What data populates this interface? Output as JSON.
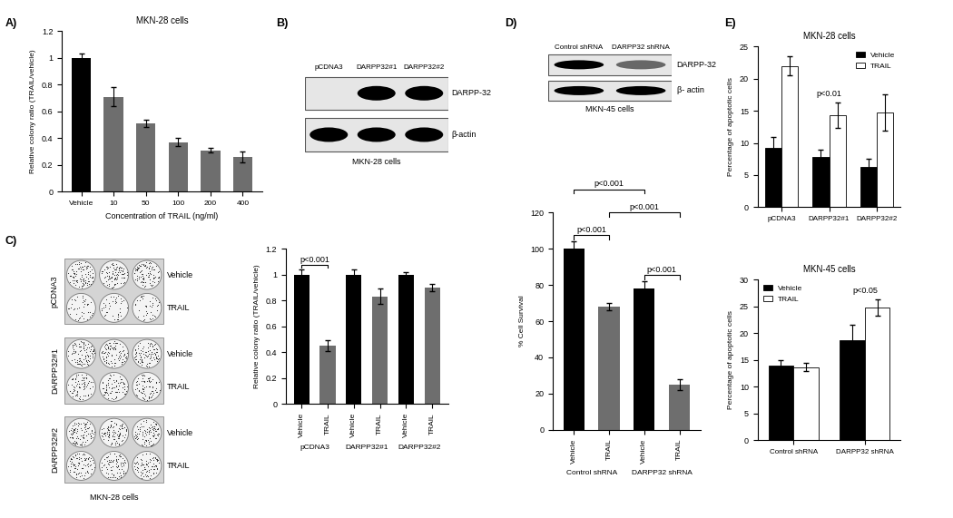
{
  "panel_labels": [
    "A)",
    "B)",
    "C)",
    "D)",
    "E)"
  ],
  "chart_data": [
    {
      "type": "bar",
      "title": "MKN-28 cells",
      "categories": [
        "Vehicle",
        "10",
        "50",
        "100",
        "200",
        "400"
      ],
      "values": [
        1.0,
        0.71,
        0.51,
        0.37,
        0.31,
        0.26
      ],
      "error": [
        0.03,
        0.07,
        0.03,
        0.03,
        0.02,
        0.04
      ],
      "colors": [
        "#000000",
        "#6e6e6e",
        "#6e6e6e",
        "#6e6e6e",
        "#6e6e6e",
        "#6e6e6e"
      ],
      "xlabel": "Concentration of TRAIL (ng/ml)",
      "ylabel": "Relative colony ratio (TRAIL/vehicle)",
      "ylim": [
        0,
        1.2
      ],
      "yticks": [
        0,
        0.2,
        0.4,
        0.6,
        0.8,
        1,
        1.2
      ]
    },
    {
      "type": "bar",
      "categories": [
        "Vehicle",
        "TRAIL",
        "Vehicle",
        "TRAIL",
        "Vehicle",
        "TRAIL"
      ],
      "groups": [
        "pCDNA3",
        "DARPP32#1",
        "DARPP32#2"
      ],
      "values": [
        1.0,
        0.45,
        1.0,
        0.83,
        1.0,
        0.9
      ],
      "error": [
        0.04,
        0.04,
        0.04,
        0.06,
        0.02,
        0.03
      ],
      "colors": [
        "#000000",
        "#6e6e6e",
        "#000000",
        "#6e6e6e",
        "#000000",
        "#6e6e6e"
      ],
      "ylabel": "Relative colony ratio (TRAIL/vehicle)",
      "ylim": [
        0,
        1.2
      ],
      "yticks": [
        0,
        0.2,
        0.4,
        0.6,
        0.8,
        1,
        1.2
      ],
      "annotations": [
        {
          "text": "p<0.001",
          "from": 0,
          "to": 1
        }
      ]
    },
    {
      "type": "bar",
      "categories": [
        "Vehicle",
        "TRAIL",
        "Vehicle",
        "TRAIL"
      ],
      "groups": [
        "Control shRNA",
        "DARPP32 shRNA"
      ],
      "values": [
        100,
        68,
        78,
        25
      ],
      "error": [
        4,
        2,
        4,
        3
      ],
      "colors": [
        "#000000",
        "#6e6e6e",
        "#000000",
        "#6e6e6e"
      ],
      "ylabel": "% Cell Survival",
      "ylim": [
        0,
        120
      ],
      "yticks": [
        0,
        20,
        40,
        60,
        80,
        100,
        120
      ],
      "annotations": [
        {
          "text": "p<0.001",
          "from": 0,
          "to": 1
        },
        {
          "text": "p<0.001",
          "from": 2,
          "to": 3
        },
        {
          "text": "p<0.001",
          "from": 1,
          "to": 3
        },
        {
          "text": "p<0.001",
          "from": 0,
          "to": 2
        }
      ]
    },
    {
      "type": "grouped_bar",
      "title": "MKN-28 cells",
      "categories": [
        "pCDNA3",
        "DARPP32#1",
        "DARPP32#2"
      ],
      "series": [
        {
          "name": "Vehicle",
          "color": "#000000",
          "values": [
            9.3,
            7.8,
            6.3
          ],
          "error": [
            1.7,
            1.2,
            1.3
          ]
        },
        {
          "name": "TRAIL",
          "color": "#ffffff",
          "values": [
            22,
            14.3,
            14.7
          ],
          "error": [
            1.5,
            2.0,
            2.8
          ]
        }
      ],
      "ylabel": "Percentage of apoptotic cells",
      "ylim": [
        0,
        25
      ],
      "yticks": [
        0,
        5,
        10,
        15,
        20,
        25
      ],
      "legend": "upper right",
      "annotations": [
        {
          "text": "p<0.01",
          "at": 1
        }
      ]
    },
    {
      "type": "grouped_bar",
      "title": "MKN-45 cells",
      "categories": [
        "Control shRNA",
        "DARPP32 shRNA"
      ],
      "series": [
        {
          "name": "Vehicle",
          "color": "#000000",
          "values": [
            14,
            18.7
          ],
          "error": [
            1.0,
            2.8
          ]
        },
        {
          "name": "TRAIL",
          "color": "#ffffff",
          "values": [
            13.7,
            24.8
          ],
          "error": [
            0.7,
            1.5
          ]
        }
      ],
      "ylabel": "Percentage of apoptotic cells",
      "ylim": [
        0,
        30
      ],
      "yticks": [
        0,
        5,
        10,
        15,
        20,
        25,
        30
      ],
      "legend": "upper left",
      "annotations": [
        {
          "text": "p<0.05",
          "at": 1
        }
      ]
    }
  ],
  "blots": [
    {
      "lanes": [
        "pCDNA3",
        "DARPP32#1",
        "DARPP32#2"
      ],
      "bands": [
        {
          "label": "DARPP-32",
          "intensity": [
            0,
            1,
            1
          ]
        },
        {
          "label": "β-actin",
          "intensity": [
            1,
            1,
            1
          ]
        }
      ],
      "caption": "MKN-28 cells"
    },
    {
      "lanes": [
        "Control shRNA",
        "DARPP32 shRNA"
      ],
      "bands": [
        {
          "label": "DARPP-32",
          "intensity": [
            1,
            0.55
          ]
        },
        {
          "label": "β- actin",
          "intensity": [
            1,
            1
          ]
        }
      ],
      "caption": "MKN-45 cells"
    }
  ],
  "plates": {
    "groups": [
      "pCDNA3",
      "DARPP32#1",
      "DARPP32#2"
    ],
    "rows": [
      "Vehicle",
      "TRAIL"
    ],
    "caption": "MKN-28 cells"
  }
}
